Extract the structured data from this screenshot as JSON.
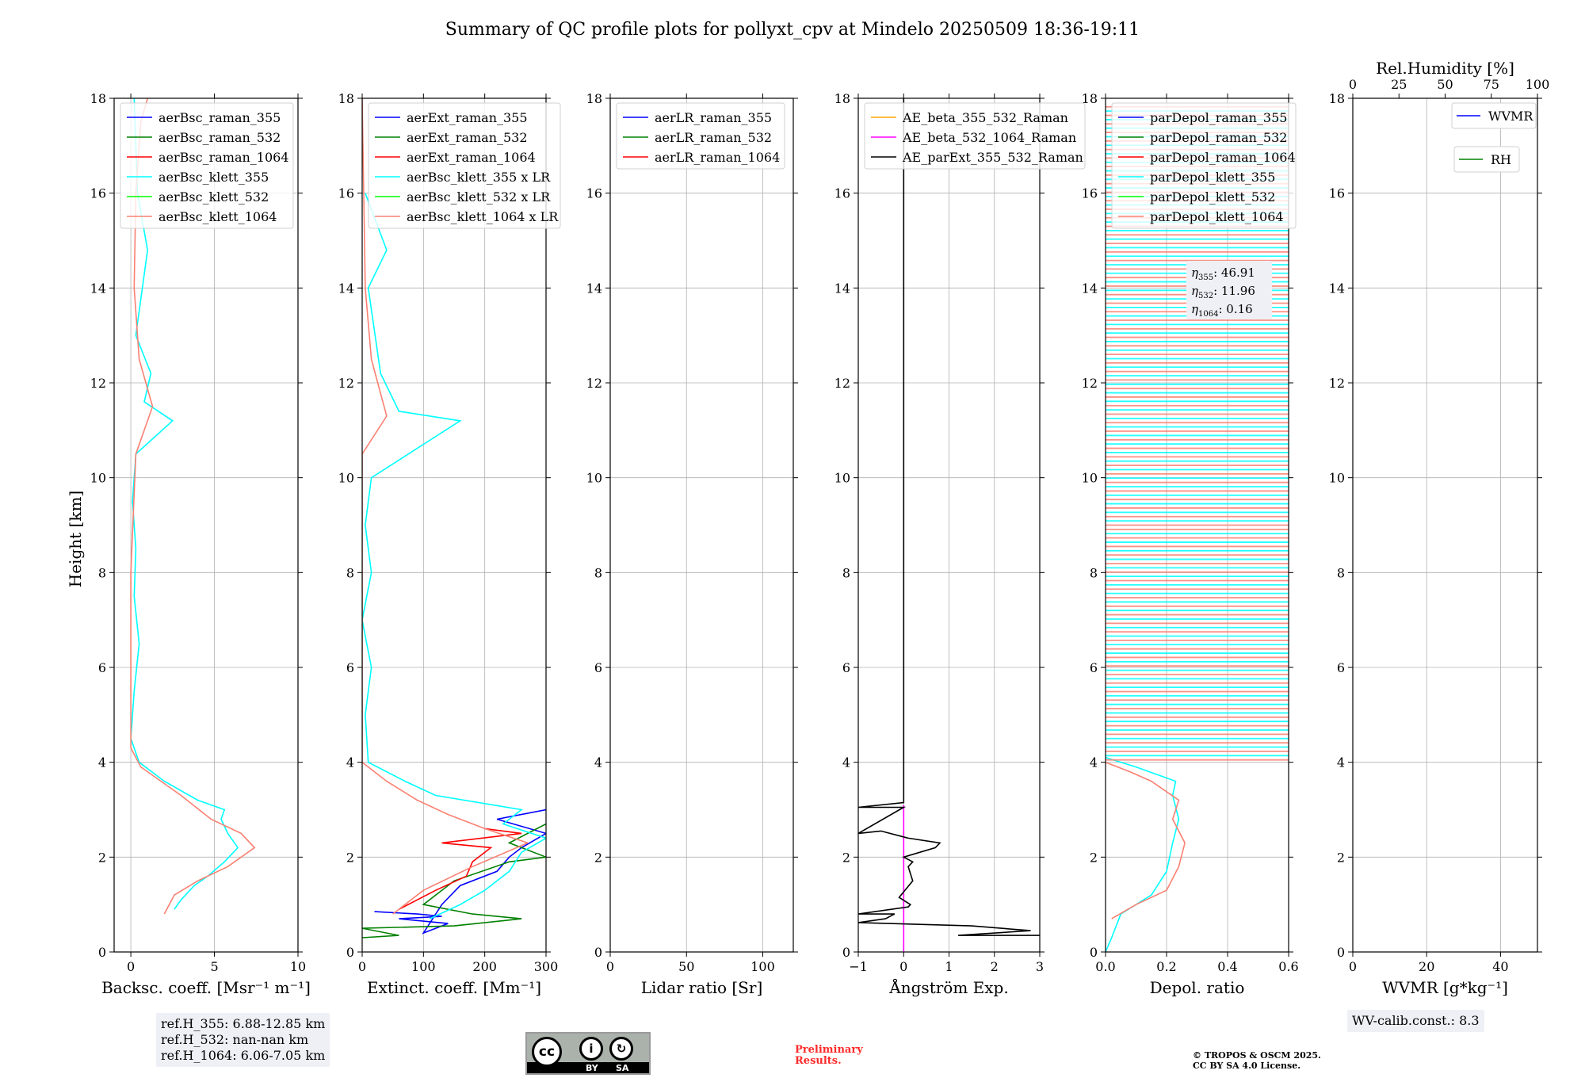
{
  "title": "Summary of QC profile plots for pollyxt_cpv at Mindelo 20250509 18:36-19:11",
  "ylabel": "Height [km]",
  "y_ticks": [
    "0",
    "2",
    "4",
    "6",
    "8",
    "10",
    "12",
    "14",
    "16",
    "18"
  ],
  "colors": {
    "blue": "#0000ff",
    "green": "#008000",
    "red": "#ff0000",
    "cyan": "#00ffff",
    "lime": "#00ff00",
    "salmon": "#fa8072",
    "orange": "#ffa500",
    "magenta": "#ff00ff",
    "black": "#000000"
  },
  "chart_data": [
    {
      "type": "line",
      "id": "bsc",
      "xlabel": "Backsc. coeff. [Msr⁻¹ m⁻¹]",
      "xlim": [
        -1.0,
        10.0
      ],
      "ylim": [
        0,
        18
      ],
      "x_ticks": [
        {
          "v": 0,
          "t": "0"
        },
        {
          "v": 5,
          "t": "5"
        },
        {
          "v": 10,
          "t": "10"
        }
      ],
      "legend": [
        {
          "label": "aerBsc_raman_355",
          "color": "blue"
        },
        {
          "label": "aerBsc_raman_532",
          "color": "green"
        },
        {
          "label": "aerBsc_raman_1064",
          "color": "red"
        },
        {
          "label": "aerBsc_klett_355",
          "color": "cyan"
        },
        {
          "label": "aerBsc_klett_532",
          "color": "lime"
        },
        {
          "label": "aerBsc_klett_1064",
          "color": "salmon"
        }
      ],
      "series": [
        {
          "name": "aerBsc_klett_355",
          "color": "cyan",
          "points": [
            [
              2.6,
              0.9
            ],
            [
              3.0,
              1.1
            ],
            [
              3.8,
              1.4
            ],
            [
              4.6,
              1.6
            ],
            [
              5.6,
              1.9
            ],
            [
              6.4,
              2.2
            ],
            [
              5.8,
              2.5
            ],
            [
              5.4,
              2.8
            ],
            [
              5.6,
              3.0
            ],
            [
              4.0,
              3.2
            ],
            [
              2.0,
              3.6
            ],
            [
              0.5,
              4.0
            ],
            [
              0,
              4.5
            ],
            [
              0.2,
              5.5
            ],
            [
              0.5,
              6.5
            ],
            [
              0.2,
              7.5
            ],
            [
              0.3,
              8.5
            ],
            [
              0.1,
              9.5
            ],
            [
              0.3,
              10.5
            ],
            [
              2.5,
              11.2
            ],
            [
              0.8,
              11.6
            ],
            [
              1.2,
              12.2
            ],
            [
              0.3,
              13.0
            ],
            [
              1.0,
              14.8
            ],
            [
              0.4,
              16.0
            ],
            [
              0.2,
              18.0
            ]
          ]
        },
        {
          "name": "aerBsc_klett_1064",
          "color": "salmon",
          "points": [
            [
              2.0,
              0.8
            ],
            [
              2.6,
              1.2
            ],
            [
              4.0,
              1.5
            ],
            [
              5.8,
              1.8
            ],
            [
              7.4,
              2.2
            ],
            [
              6.6,
              2.5
            ],
            [
              4.8,
              2.8
            ],
            [
              3.0,
              3.3
            ],
            [
              0.6,
              3.9
            ],
            [
              0,
              4.3
            ],
            [
              0,
              8.0
            ],
            [
              0.3,
              10.5
            ],
            [
              1.3,
              11.5
            ],
            [
              0.5,
              12.5
            ],
            [
              0.2,
              14.0
            ],
            [
              0.3,
              16.0
            ],
            [
              0.6,
              17.5
            ],
            [
              1.0,
              18.0
            ]
          ]
        }
      ],
      "annotations": [
        "ref.H_355: 6.88-12.85 km",
        "ref.H_532: nan-nan km",
        "ref.H_1064: 6.06-7.05 km"
      ]
    },
    {
      "type": "line",
      "id": "ext",
      "xlabel": "Extinct. coeff. [Mm⁻¹]",
      "xlim": [
        0,
        300
      ],
      "ylim": [
        0,
        18
      ],
      "x_ticks": [
        {
          "v": 0,
          "t": "0"
        },
        {
          "v": 100,
          "t": "100"
        },
        {
          "v": 200,
          "t": "200"
        },
        {
          "v": 300,
          "t": "300"
        }
      ],
      "legend": [
        {
          "label": "aerExt_raman_355",
          "color": "blue"
        },
        {
          "label": "aerExt_raman_532",
          "color": "green"
        },
        {
          "label": "aerExt_raman_1064",
          "color": "red"
        },
        {
          "label": "aerBsc_klett_355 x LR",
          "color": "cyan"
        },
        {
          "label": "aerBsc_klett_532 x LR",
          "color": "lime"
        },
        {
          "label": "aerBsc_klett_1064 x LR",
          "color": "salmon"
        }
      ],
      "series": [
        {
          "name": "aerExt_raman_355",
          "color": "blue",
          "points": [
            [
              20,
              0.85
            ],
            [
              90,
              0.8
            ],
            [
              130,
              0.75
            ],
            [
              60,
              0.7
            ],
            [
              140,
              0.6
            ],
            [
              100,
              0.4
            ],
            [
              130,
              1.0
            ],
            [
              160,
              1.4
            ],
            [
              220,
              1.7
            ],
            [
              240,
              2.0
            ],
            [
              260,
              2.2
            ],
            [
              300,
              2.5
            ],
            [
              220,
              2.8
            ],
            [
              300,
              3.0
            ]
          ]
        },
        {
          "name": "aerExt_raman_532",
          "color": "green",
          "points": [
            [
              0,
              0.3
            ],
            [
              60,
              0.35
            ],
            [
              0,
              0.5
            ],
            [
              150,
              0.55
            ],
            [
              260,
              0.7
            ],
            [
              180,
              0.8
            ],
            [
              100,
              1.0
            ],
            [
              150,
              1.5
            ],
            [
              240,
              1.9
            ],
            [
              300,
              2.0
            ],
            [
              240,
              2.3
            ],
            [
              300,
              2.7
            ]
          ]
        },
        {
          "name": "aerExt_raman_1064",
          "color": "red",
          "points": [
            [
              60,
              0.9
            ],
            [
              120,
              1.3
            ],
            [
              170,
              1.6
            ],
            [
              180,
              1.9
            ],
            [
              210,
              2.2
            ],
            [
              130,
              2.3
            ],
            [
              260,
              2.5
            ],
            [
              200,
              2.6
            ]
          ]
        },
        {
          "name": "aerBsc_klett_355 x LR",
          "color": "cyan",
          "points": [
            [
              110,
              0.7
            ],
            [
              160,
              1.0
            ],
            [
              200,
              1.3
            ],
            [
              240,
              1.7
            ],
            [
              260,
              2.1
            ],
            [
              300,
              2.4
            ],
            [
              230,
              2.7
            ],
            [
              260,
              3.0
            ],
            [
              120,
              3.3
            ],
            [
              70,
              3.6
            ],
            [
              10,
              4.0
            ],
            [
              5,
              5.0
            ],
            [
              15,
              6.0
            ],
            [
              0,
              7.0
            ],
            [
              15,
              8.0
            ],
            [
              5,
              9.0
            ],
            [
              15,
              10.0
            ],
            [
              160,
              11.2
            ],
            [
              60,
              11.4
            ],
            [
              30,
              12.2
            ],
            [
              10,
              14.0
            ],
            [
              40,
              14.8
            ],
            [
              5,
              16.0
            ]
          ]
        },
        {
          "name": "aerBsc_klett_1064 x LR",
          "color": "salmon",
          "points": [
            [
              50,
              0.8
            ],
            [
              100,
              1.3
            ],
            [
              180,
              1.8
            ],
            [
              270,
              2.3
            ],
            [
              200,
              2.6
            ],
            [
              140,
              2.9
            ],
            [
              90,
              3.2
            ],
            [
              40,
              3.6
            ],
            [
              0,
              4.0
            ],
            [
              0,
              10.5
            ],
            [
              40,
              11.3
            ],
            [
              15,
              12.5
            ],
            [
              5,
              14.0
            ],
            [
              0,
              18.0
            ]
          ]
        }
      ]
    },
    {
      "type": "line",
      "id": "lr",
      "xlabel": "Lidar ratio [Sr]",
      "xlim": [
        0,
        120
      ],
      "ylim": [
        0,
        18
      ],
      "x_ticks": [
        {
          "v": 0,
          "t": "0"
        },
        {
          "v": 50,
          "t": "50"
        },
        {
          "v": 100,
          "t": "100"
        }
      ],
      "legend": [
        {
          "label": "aerLR_raman_355",
          "color": "blue"
        },
        {
          "label": "aerLR_raman_532",
          "color": "green"
        },
        {
          "label": "aerLR_raman_1064",
          "color": "red"
        }
      ],
      "series": []
    },
    {
      "type": "line",
      "id": "ae",
      "xlabel": "Ångström Exp.",
      "xlim": [
        -1,
        3
      ],
      "ylim": [
        0,
        18
      ],
      "x_ticks": [
        {
          "v": -1,
          "t": "−1"
        },
        {
          "v": 0,
          "t": "0"
        },
        {
          "v": 1,
          "t": "1"
        },
        {
          "v": 2,
          "t": "2"
        },
        {
          "v": 3,
          "t": "3"
        }
      ],
      "legend": [
        {
          "label": "AE_beta_355_532_Raman",
          "color": "orange"
        },
        {
          "label": "AE_beta_532_1064_Raman",
          "color": "magenta"
        },
        {
          "label": "AE_parExt_355_532_Raman",
          "color": "black"
        }
      ],
      "series": [
        {
          "name": "AE_beta_532_1064_Raman",
          "color": "magenta",
          "points": [
            [
              0,
              0
            ],
            [
              0,
              3.1
            ]
          ]
        },
        {
          "name": "AE_parExt_355_532_Raman",
          "color": "black",
          "points": [
            [
              3,
              0.35
            ],
            [
              1.2,
              0.35
            ],
            [
              2.8,
              0.45
            ],
            [
              1.5,
              0.55
            ],
            [
              -1,
              0.62
            ],
            [
              -0.4,
              0.7
            ],
            [
              -0.2,
              0.8
            ],
            [
              -1,
              0.8
            ],
            [
              0.1,
              0.95
            ],
            [
              0.15,
              1.0
            ],
            [
              -0.1,
              1.15
            ],
            [
              0.2,
              1.5
            ],
            [
              0.1,
              1.8
            ],
            [
              0.2,
              1.9
            ],
            [
              0,
              2.0
            ],
            [
              0.7,
              2.2
            ],
            [
              0.8,
              2.3
            ],
            [
              0.1,
              2.4
            ],
            [
              -0.5,
              2.55
            ],
            [
              -1,
              2.5
            ],
            [
              0,
              3.05
            ],
            [
              -1,
              3.05
            ],
            [
              0,
              3.15
            ],
            [
              0,
              18.0
            ]
          ]
        }
      ]
    },
    {
      "type": "line",
      "id": "depol",
      "xlabel": "Depol. ratio",
      "xlim": [
        0,
        0.6
      ],
      "ylim": [
        0,
        18
      ],
      "x_ticks": [
        {
          "v": 0,
          "t": "0.0"
        },
        {
          "v": 0.2,
          "t": "0.2"
        },
        {
          "v": 0.4,
          "t": "0.4"
        },
        {
          "v": 0.6,
          "t": "0.6"
        }
      ],
      "legend": [
        {
          "label": "parDepol_raman_355",
          "color": "blue"
        },
        {
          "label": "parDepol_raman_532",
          "color": "green"
        },
        {
          "label": "parDepol_raman_1064",
          "color": "red"
        },
        {
          "label": "parDepol_klett_355",
          "color": "cyan"
        },
        {
          "label": "parDepol_klett_532",
          "color": "lime"
        },
        {
          "label": "parDepol_klett_1064",
          "color": "salmon"
        }
      ],
      "series": [
        {
          "name": "parDepol_klett_355",
          "color": "cyan",
          "points": [
            [
              0.0,
              0.0
            ],
            [
              0.02,
              0.3
            ],
            [
              0.05,
              0.8
            ],
            [
              0.15,
              1.2
            ],
            [
              0.2,
              1.7
            ],
            [
              0.22,
              2.3
            ],
            [
              0.24,
              2.8
            ],
            [
              0.22,
              3.3
            ],
            [
              0.23,
              3.6
            ],
            [
              0.1,
              3.9
            ],
            [
              0.0,
              4.1
            ]
          ]
        },
        {
          "name": "parDepol_klett_1064",
          "color": "salmon",
          "points": [
            [
              0.02,
              0.7
            ],
            [
              0.1,
              1.0
            ],
            [
              0.2,
              1.3
            ],
            [
              0.24,
              1.8
            ],
            [
              0.26,
              2.3
            ],
            [
              0.22,
              2.8
            ],
            [
              0.24,
              3.2
            ],
            [
              0.15,
              3.6
            ],
            [
              0.08,
              3.8
            ],
            [
              0.0,
              4.0
            ]
          ]
        }
      ],
      "annotations": [
        "η355: 46.91",
        "η532: 11.96",
        "η1064: 0.16"
      ]
    },
    {
      "type": "line",
      "id": "wv",
      "xlabel": "WVMR [g*kg⁻¹]",
      "top_xlabel": "Rel.Humidity [%]",
      "xlim": [
        0,
        50
      ],
      "ylim": [
        0,
        18
      ],
      "x_ticks": [
        {
          "v": 0,
          "t": "0"
        },
        {
          "v": 20,
          "t": "20"
        },
        {
          "v": 40,
          "t": "40"
        }
      ],
      "top_ticks": [
        {
          "v": 0,
          "t": "0"
        },
        {
          "v": 25,
          "t": "25"
        },
        {
          "v": 50,
          "t": "50"
        },
        {
          "v": 75,
          "t": "75"
        },
        {
          "v": 100,
          "t": "100"
        }
      ],
      "legend": [
        {
          "label": "WVMR",
          "color": "blue"
        },
        {
          "label": "RH",
          "color": "green"
        }
      ],
      "series": [],
      "annotations": [
        "WV-calib.const.: 8.3"
      ]
    }
  ],
  "footer": {
    "preliminary": [
      "Preliminary",
      "Results."
    ],
    "copyright": [
      "© TROPOS & OSCM 2025.",
      "CC BY SA 4.0 License."
    ],
    "cc_labels": [
      "BY",
      "SA"
    ]
  }
}
